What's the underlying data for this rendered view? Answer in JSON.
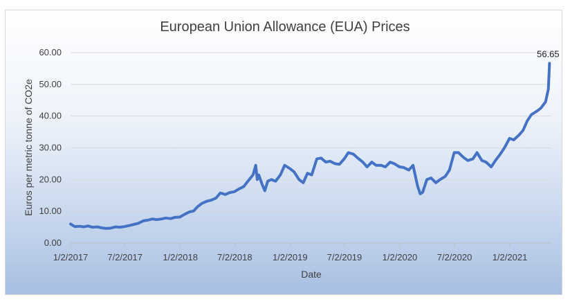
{
  "chart_data": {
    "type": "line",
    "title": "European Union Allowance (EUA) Prices",
    "xlabel": "Date",
    "ylabel": "Euros per metric tonne of CO2e",
    "ylim": [
      0,
      60
    ],
    "yticks": [
      "0.00",
      "10.00",
      "20.00",
      "30.00",
      "40.00",
      "50.00",
      "60.00"
    ],
    "xticks": [
      "1/2/2017",
      "7/2/2017",
      "1/2/2018",
      "7/2/2018",
      "1/2/2019",
      "7/2/2019",
      "1/2/2020",
      "7/2/2020",
      "1/2/2021"
    ],
    "grid": true,
    "legend": "none",
    "line_color": "#4472c4",
    "annotation": {
      "label": "56.65",
      "x": "2021-05-14",
      "y": 56.65
    },
    "series": [
      {
        "x": [
          "2017-01-02",
          "2017-01-16",
          "2017-02-01",
          "2017-02-15",
          "2017-03-01",
          "2017-03-15",
          "2017-04-01",
          "2017-04-15",
          "2017-05-01",
          "2017-05-15",
          "2017-06-01",
          "2017-06-15",
          "2017-07-01",
          "2017-07-15",
          "2017-08-01",
          "2017-08-15",
          "2017-09-01",
          "2017-09-15",
          "2017-10-01",
          "2017-10-15",
          "2017-11-01",
          "2017-11-15",
          "2017-12-01",
          "2017-12-15",
          "2018-01-01",
          "2018-01-15",
          "2018-02-01",
          "2018-02-15",
          "2018-03-01",
          "2018-03-15",
          "2018-04-01",
          "2018-04-15",
          "2018-05-01",
          "2018-05-15",
          "2018-06-01",
          "2018-06-15",
          "2018-07-01",
          "2018-07-15",
          "2018-08-01",
          "2018-08-15",
          "2018-09-01",
          "2018-09-10",
          "2018-09-15",
          "2018-09-20",
          "2018-10-01",
          "2018-10-10",
          "2018-10-20",
          "2018-11-01",
          "2018-11-15",
          "2018-12-01",
          "2018-12-15",
          "2019-01-01",
          "2019-01-15",
          "2019-02-01",
          "2019-02-15",
          "2019-03-01",
          "2019-03-15",
          "2019-04-01",
          "2019-04-15",
          "2019-05-01",
          "2019-05-15",
          "2019-06-01",
          "2019-06-15",
          "2019-07-01",
          "2019-07-15",
          "2019-08-01",
          "2019-08-15",
          "2019-09-01",
          "2019-09-15",
          "2019-10-01",
          "2019-10-15",
          "2019-11-01",
          "2019-11-15",
          "2019-12-01",
          "2019-12-15",
          "2020-01-01",
          "2020-01-15",
          "2020-02-01",
          "2020-02-15",
          "2020-03-01",
          "2020-03-10",
          "2020-03-18",
          "2020-03-25",
          "2020-04-01",
          "2020-04-15",
          "2020-05-01",
          "2020-05-15",
          "2020-06-01",
          "2020-06-15",
          "2020-07-01",
          "2020-07-15",
          "2020-08-01",
          "2020-08-15",
          "2020-09-01",
          "2020-09-15",
          "2020-10-01",
          "2020-10-15",
          "2020-11-01",
          "2020-11-15",
          "2020-12-01",
          "2020-12-15",
          "2021-01-01",
          "2021-01-15",
          "2021-02-01",
          "2021-02-15",
          "2021-03-01",
          "2021-03-15",
          "2021-04-01",
          "2021-04-15",
          "2021-05-01",
          "2021-05-10",
          "2021-05-14"
        ],
        "values": [
          6.0,
          5.2,
          5.3,
          5.1,
          5.4,
          5.0,
          5.1,
          4.8,
          4.6,
          4.7,
          5.1,
          5.0,
          5.2,
          5.5,
          5.9,
          6.2,
          7.0,
          7.2,
          7.6,
          7.4,
          7.6,
          7.9,
          7.7,
          8.1,
          8.2,
          9.0,
          9.8,
          10.1,
          11.5,
          12.5,
          13.2,
          13.5,
          14.2,
          15.8,
          15.3,
          15.9,
          16.2,
          17.0,
          17.8,
          19.5,
          21.5,
          24.5,
          20.0,
          21.5,
          18.5,
          16.5,
          19.5,
          20.0,
          19.5,
          21.5,
          24.5,
          23.5,
          22.5,
          20.0,
          19.0,
          22.0,
          21.5,
          26.5,
          26.8,
          25.5,
          25.8,
          25.0,
          24.8,
          26.5,
          28.5,
          28.0,
          26.8,
          25.5,
          24.0,
          25.5,
          24.5,
          24.5,
          24.0,
          25.5,
          25.0,
          24.0,
          23.8,
          23.0,
          24.5,
          18.0,
          15.5,
          16.0,
          18.0,
          20.0,
          20.5,
          19.0,
          20.0,
          21.0,
          23.0,
          28.5,
          28.5,
          27.0,
          26.0,
          26.5,
          28.5,
          26.0,
          25.5,
          24.0,
          26.0,
          28.0,
          30.0,
          33.0,
          32.5,
          34.0,
          35.5,
          38.5,
          40.5,
          41.5,
          42.5,
          44.5,
          48.5,
          56.65
        ]
      }
    ]
  }
}
